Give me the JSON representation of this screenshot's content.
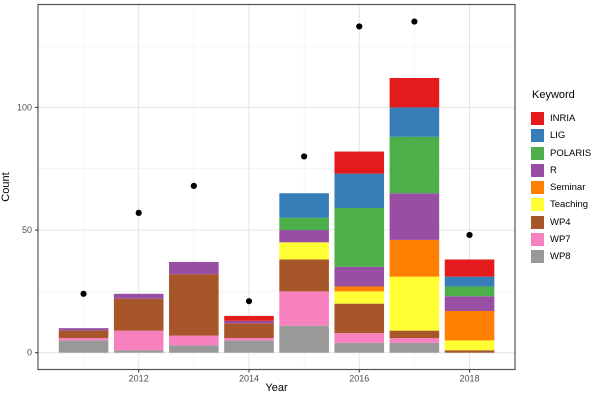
{
  "chart_data": {
    "type": "bar",
    "stacked": true,
    "title": "",
    "xlabel": "Year",
    "ylabel": "Count",
    "x": [
      2011,
      2012,
      2013,
      2014,
      2015,
      2016,
      2017,
      2018
    ],
    "x_ticks": [
      2012,
      2014,
      2016,
      2018
    ],
    "x_minor": [
      2011,
      2013,
      2015,
      2017
    ],
    "y_ticks": [
      0,
      50,
      100
    ],
    "y_minor": [
      25,
      75,
      125
    ],
    "ylim": [
      -7,
      142
    ],
    "grid": true,
    "stack_bottom_to_top": [
      "WP8",
      "WP7",
      "WP4",
      "Teaching",
      "Seminar",
      "R",
      "POLARIS",
      "LIG",
      "INRIA"
    ],
    "series": [
      {
        "name": "INRIA",
        "color": "#E41A1C",
        "values": [
          0,
          0,
          0,
          2,
          0,
          9,
          12,
          7
        ]
      },
      {
        "name": "LIG",
        "color": "#377EB8",
        "values": [
          0,
          0,
          0,
          0,
          10,
          14,
          12,
          4
        ]
      },
      {
        "name": "POLARIS",
        "color": "#4DAF4A",
        "values": [
          0,
          0,
          0,
          0,
          5,
          24,
          23,
          4
        ]
      },
      {
        "name": "R",
        "color": "#984EA3",
        "values": [
          1,
          2,
          5,
          1,
          5,
          8,
          19,
          6
        ]
      },
      {
        "name": "Seminar",
        "color": "#FF7F00",
        "values": [
          0,
          0,
          0,
          0,
          0,
          2,
          15,
          12
        ]
      },
      {
        "name": "Teaching",
        "color": "#FFFF33",
        "values": [
          0,
          0,
          0,
          0,
          7,
          5,
          22,
          4
        ]
      },
      {
        "name": "WP4",
        "color": "#A65628",
        "values": [
          3,
          13,
          25,
          6,
          13,
          12,
          3,
          1
        ]
      },
      {
        "name": "WP7",
        "color": "#F781BF",
        "values": [
          1,
          8,
          4,
          1,
          14,
          4,
          2,
          0
        ]
      },
      {
        "name": "WP8",
        "color": "#999999",
        "values": [
          5,
          1,
          3,
          5,
          11,
          4,
          4,
          0
        ]
      }
    ],
    "bar_totals": [
      10,
      24,
      37,
      15,
      65,
      82,
      112,
      38
    ],
    "points": {
      "name": "yearly-dots",
      "color": "#000000",
      "values": [
        24,
        57,
        68,
        21,
        80,
        133,
        135,
        48
      ]
    },
    "legend": {
      "title": "Keyword",
      "position": "right"
    }
  }
}
